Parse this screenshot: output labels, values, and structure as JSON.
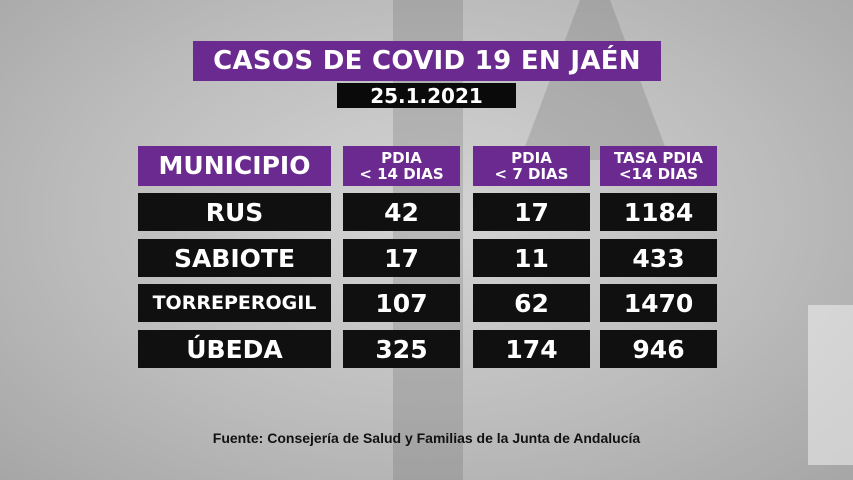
{
  "title": "CASOS DE COVID 19 EN JAÉN",
  "date": "25.1.2021",
  "headers": {
    "municipio": "MUNICIPIO",
    "col1": [
      "PDIA",
      "< 14 DIAS"
    ],
    "col2": [
      "PDIA",
      "< 7 DIAS"
    ],
    "col3": [
      "TASA PDIA",
      "<14 DIAS"
    ]
  },
  "rows": [
    {
      "municipio": "RUS",
      "pdia14": "42",
      "pdia7": "17",
      "tasa": "1184"
    },
    {
      "municipio": "SABIOTE",
      "pdia14": "17",
      "pdia7": "11",
      "tasa": "433"
    },
    {
      "municipio": "TORREPEROGIL",
      "pdia14": "107",
      "pdia7": "62",
      "tasa": "1470"
    },
    {
      "municipio": "ÚBEDA",
      "pdia14": "325",
      "pdia7": "174",
      "tasa": "946"
    }
  ],
  "source": "Fuente: Consejería de Salud y Familias de la Junta de Andalucía",
  "colors": {
    "accent": "#6b2a8f",
    "cell": "#101010"
  }
}
